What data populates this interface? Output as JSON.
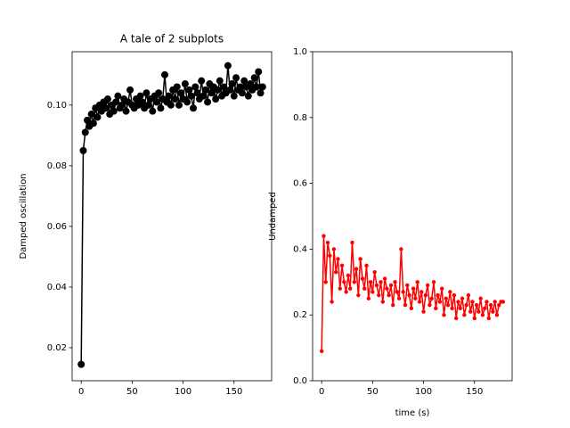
{
  "chart_data": [
    {
      "type": "line",
      "title": "A tale of 2 subplots",
      "ylabel": "Damped oscillation",
      "color": "#000000",
      "marker": "o",
      "x": [
        0,
        2,
        4,
        6,
        8,
        10,
        12,
        14,
        16,
        18,
        20,
        22,
        24,
        26,
        28,
        30,
        32,
        34,
        36,
        38,
        40,
        42,
        44,
        46,
        48,
        50,
        52,
        54,
        56,
        58,
        60,
        62,
        64,
        66,
        68,
        70,
        72,
        74,
        76,
        78,
        80,
        82,
        84,
        86,
        88,
        90,
        92,
        94,
        96,
        98,
        100,
        102,
        104,
        106,
        108,
        110,
        112,
        114,
        116,
        118,
        120,
        122,
        124,
        126,
        128,
        130,
        132,
        134,
        136,
        138,
        140,
        142,
        144,
        146,
        148,
        150,
        152,
        154,
        156,
        158,
        160,
        162,
        164,
        166,
        168,
        170,
        172,
        174,
        176,
        178
      ],
      "values": [
        0.0145,
        0.085,
        0.091,
        0.095,
        0.093,
        0.097,
        0.094,
        0.099,
        0.096,
        0.1,
        0.098,
        0.101,
        0.099,
        0.102,
        0.097,
        0.1,
        0.098,
        0.101,
        0.103,
        0.099,
        0.1,
        0.102,
        0.098,
        0.101,
        0.105,
        0.1,
        0.099,
        0.102,
        0.1,
        0.103,
        0.101,
        0.099,
        0.104,
        0.1,
        0.102,
        0.098,
        0.103,
        0.101,
        0.104,
        0.099,
        0.102,
        0.11,
        0.101,
        0.103,
        0.1,
        0.105,
        0.102,
        0.106,
        0.1,
        0.104,
        0.102,
        0.107,
        0.101,
        0.105,
        0.103,
        0.099,
        0.106,
        0.104,
        0.102,
        0.108,
        0.103,
        0.105,
        0.101,
        0.107,
        0.104,
        0.106,
        0.102,
        0.105,
        0.108,
        0.103,
        0.106,
        0.104,
        0.113,
        0.105,
        0.107,
        0.103,
        0.109,
        0.105,
        0.106,
        0.104,
        0.108,
        0.106,
        0.103,
        0.107,
        0.105,
        0.109,
        0.106,
        0.111,
        0.104,
        0.106
      ],
      "xlim": [
        -8.9,
        186.9
      ],
      "xticks": [
        0,
        50,
        100,
        150
      ],
      "ylim": [
        0.0091,
        0.1176
      ],
      "yticks": [
        0.02,
        0.04,
        0.06,
        0.08,
        {
          "value": 0.1,
          "label": "0.10"
        }
      ]
    },
    {
      "type": "line",
      "xlabel": "time (s)",
      "ylabel": "Undamped",
      "color": "#ff0000",
      "marker": ".",
      "x": [
        0,
        2,
        4,
        6,
        8,
        10,
        12,
        14,
        16,
        18,
        20,
        22,
        24,
        26,
        28,
        30,
        32,
        34,
        36,
        38,
        40,
        42,
        44,
        46,
        48,
        50,
        52,
        54,
        56,
        58,
        60,
        62,
        64,
        66,
        68,
        70,
        72,
        74,
        76,
        78,
        80,
        82,
        84,
        86,
        88,
        90,
        92,
        94,
        96,
        98,
        100,
        102,
        104,
        106,
        108,
        110,
        112,
        114,
        116,
        118,
        120,
        122,
        124,
        126,
        128,
        130,
        132,
        134,
        136,
        138,
        140,
        142,
        144,
        146,
        148,
        150,
        152,
        154,
        156,
        158,
        160,
        162,
        164,
        166,
        168,
        170,
        172,
        174,
        176,
        178
      ],
      "values": [
        0.09,
        0.44,
        0.3,
        0.42,
        0.38,
        0.24,
        0.4,
        0.33,
        0.37,
        0.28,
        0.35,
        0.3,
        0.27,
        0.32,
        0.28,
        0.42,
        0.3,
        0.34,
        0.26,
        0.37,
        0.31,
        0.28,
        0.35,
        0.25,
        0.3,
        0.27,
        0.33,
        0.29,
        0.26,
        0.3,
        0.24,
        0.31,
        0.28,
        0.26,
        0.29,
        0.23,
        0.3,
        0.27,
        0.25,
        0.4,
        0.27,
        0.23,
        0.29,
        0.26,
        0.22,
        0.28,
        0.25,
        0.3,
        0.24,
        0.27,
        0.21,
        0.26,
        0.29,
        0.23,
        0.25,
        0.3,
        0.22,
        0.26,
        0.24,
        0.28,
        0.2,
        0.25,
        0.23,
        0.27,
        0.22,
        0.26,
        0.19,
        0.24,
        0.22,
        0.25,
        0.2,
        0.23,
        0.26,
        0.21,
        0.24,
        0.19,
        0.23,
        0.21,
        0.25,
        0.2,
        0.22,
        0.24,
        0.19,
        0.23,
        0.21,
        0.24,
        0.2,
        0.23,
        0.24,
        0.24
      ],
      "xlim": [
        -8.9,
        186.9
      ],
      "xticks": [
        0,
        50,
        100,
        150
      ],
      "ylim": [
        0,
        1
      ],
      "yticks": [
        {
          "value": 0,
          "label": "0.0"
        },
        0.2,
        0.4,
        0.6,
        0.8,
        {
          "value": 1,
          "label": "1.0"
        }
      ]
    }
  ]
}
